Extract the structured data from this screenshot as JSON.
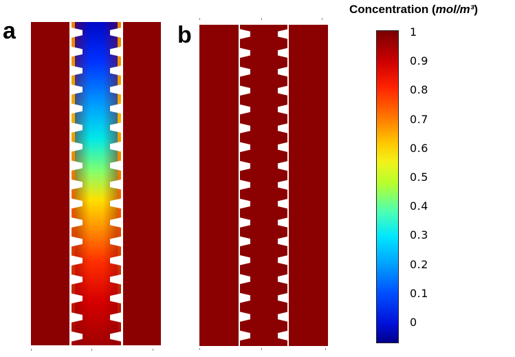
{
  "panels": [
    {
      "letter": "a",
      "description": "concentration field with depletion in central channel"
    },
    {
      "letter": "b",
      "description": "uniform concentration field"
    }
  ],
  "colorbar": {
    "title": "Concentration (",
    "unit": "mol/m³",
    "title_end": ")",
    "labels": [
      "1",
      "0.9",
      "0.8",
      "0.7",
      "0.6",
      "0.5",
      "0.4",
      "0.3",
      "0.2",
      "0.1",
      "0"
    ],
    "max": 1,
    "min": 0,
    "colors": {
      "high": "#8b0000",
      "low": "#00008a"
    }
  }
}
